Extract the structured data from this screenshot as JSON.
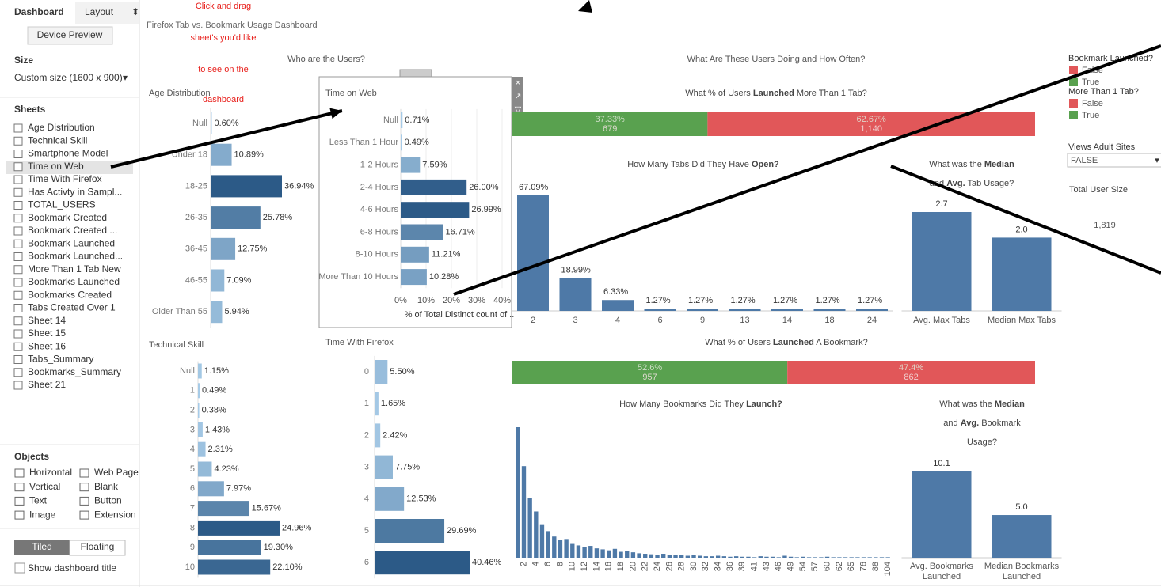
{
  "sidebar": {
    "tabs": [
      "Dashboard",
      "Layout"
    ],
    "device_preview": "Device Preview",
    "size_heading": "Size",
    "size_value": "Custom size (1600 x 900)",
    "sheets_heading": "Sheets",
    "sheets": [
      "Age Distribution",
      "Technical Skill",
      "Smartphone Model",
      "Time on Web",
      "Time With Firefox",
      "Has Activty in Sampl...",
      "TOTAL_USERS",
      "Bookmark Created",
      "Bookmark Created ...",
      "Bookmark Launched",
      "Bookmark Launched...",
      "More Than 1 Tab New",
      "Bookmarks Launched",
      "Bookmarks Created",
      "Tabs Created Over 1",
      "Sheet 14",
      "Sheet 15",
      "Sheet 16",
      "Tabs_Summary",
      "Bookmarks_Summary",
      "Sheet 21"
    ],
    "objects_heading": "Objects",
    "objects": [
      "Horizontal",
      "Web Page",
      "Vertical",
      "Blank",
      "Text",
      "Button",
      "Image",
      "Extension"
    ],
    "layout_modes": [
      "Tiled",
      "Floating"
    ],
    "show_title": "Show dashboard title"
  },
  "annotation": [
    "Click and drag",
    "sheet's you'd like",
    "to see on the",
    "dashboard"
  ],
  "dashboard_title": "Firefox Tab vs. Bookmark Usage Dashboard",
  "section_titles": [
    "Who are the Users?",
    "What Are These Users Doing and How Often?"
  ],
  "headings": [
    {
      "lines": [
        [
          {
            "text": "What % of Users "
          },
          {
            "text": "Launched",
            "bold": true
          },
          {
            "text": " More Than 1 Tab?"
          }
        ]
      ]
    },
    {
      "lines": [
        [
          {
            "text": "How Many Tabs Did They Have "
          },
          {
            "text": "Open?",
            "bold": true
          }
        ]
      ]
    },
    {
      "lines": [
        [
          {
            "text": "What was the "
          },
          {
            "text": "Median",
            "bold": true
          }
        ],
        [
          {
            "text": "and "
          },
          {
            "text": "Avg.",
            "bold": true
          },
          {
            "text": " Tab Usage?"
          }
        ]
      ]
    },
    {
      "lines": [
        [
          {
            "text": "What % of Users "
          },
          {
            "text": "Launched",
            "bold": true
          },
          {
            "text": " A Bookmark?"
          }
        ]
      ]
    },
    {
      "lines": [
        [
          {
            "text": "How Many Bookmarks Did They "
          },
          {
            "text": "Launch?",
            "bold": true
          }
        ]
      ]
    },
    {
      "lines": [
        [
          {
            "text": "What was the "
          },
          {
            "text": "Median",
            "bold": true
          }
        ],
        [
          {
            "text": "and "
          },
          {
            "text": "Avg.",
            "bold": true
          },
          {
            "text": " Bookmark"
          }
        ],
        [
          {
            "text": "Usage?"
          }
        ]
      ]
    }
  ],
  "charts": [
    {
      "type": "hbar",
      "title": "Age Distribution",
      "categories": [
        "Null",
        "Under 18",
        "18-25",
        "26-35",
        "36-45",
        "46-55",
        "Older Than 55"
      ],
      "values": [
        0.6,
        10.89,
        36.94,
        25.78,
        12.75,
        7.09,
        5.94
      ],
      "value_labels": [
        "0.60%",
        "10.89%",
        "36.94%",
        "25.78%",
        "12.75%",
        "7.09%",
        "5.94%"
      ],
      "color_range": [
        "#a9cde9",
        "#2c5a87"
      ]
    },
    {
      "type": "hbar",
      "title": "Time on Web",
      "categories": [
        "Null",
        "Less Than 1 Hour",
        "1-2 Hours",
        "2-4 Hours",
        "4-6 Hours",
        "6-8 Hours",
        "8-10 Hours",
        "More Than 10 Hours"
      ],
      "values": [
        0.71,
        0.49,
        7.59,
        26.0,
        26.99,
        16.71,
        11.21,
        10.28
      ],
      "value_labels": [
        "0.71%",
        "0.49%",
        "7.59%",
        "26.00%",
        "26.99%",
        "16.71%",
        "11.21%",
        "10.28%"
      ],
      "xlim": [
        0,
        40
      ],
      "xticks": [
        {
          "value": 0,
          "label": "0%"
        },
        {
          "value": 10,
          "label": "10%"
        },
        {
          "value": 20,
          "label": "20%"
        },
        {
          "value": 30,
          "label": "30%"
        },
        {
          "value": 40,
          "label": "40%"
        }
      ],
      "xlabel": "% of Total Distinct count of ..",
      "color_range": [
        "#a9cde9",
        "#2c5a87"
      ]
    },
    {
      "type": "hbar",
      "title": "Technical Skill",
      "categories": [
        "Null",
        "1",
        "2",
        "3",
        "4",
        "5",
        "6",
        "7",
        "8",
        "9",
        "10"
      ],
      "values": [
        1.15,
        0.49,
        0.38,
        1.43,
        2.31,
        4.23,
        7.97,
        15.67,
        24.96,
        19.3,
        22.1
      ],
      "value_labels": [
        "1.15%",
        "0.49%",
        "0.38%",
        "1.43%",
        "2.31%",
        "4.23%",
        "7.97%",
        "15.67%",
        "24.96%",
        "19.30%",
        "22.10%"
      ],
      "color_range": [
        "#a9cde9",
        "#2c5a87"
      ]
    },
    {
      "type": "hbar",
      "title": "Time With Firefox",
      "categories": [
        "0",
        "1",
        "2",
        "3",
        "4",
        "5",
        "6"
      ],
      "values": [
        5.5,
        1.65,
        2.42,
        7.75,
        12.53,
        29.69,
        40.46
      ],
      "value_labels": [
        "5.50%",
        "1.65%",
        "2.42%",
        "7.75%",
        "12.53%",
        "29.69%",
        "40.46%"
      ],
      "color_range": [
        "#a9cde9",
        "#2c5a87"
      ]
    },
    {
      "type": "stacked",
      "segments": [
        {
          "color": "#59a14f",
          "percent": 37.33,
          "percent_label": "37.33%",
          "count": 679,
          "count_label": "679"
        },
        {
          "color": "#e15759",
          "percent": 62.67,
          "percent_label": "62.67%",
          "count": 1140,
          "count_label": "1,140"
        }
      ]
    },
    {
      "type": "stacked",
      "segments": [
        {
          "color": "#59a14f",
          "percent": 52.6,
          "percent_label": "52.6%",
          "count": 957,
          "count_label": "957"
        },
        {
          "color": "#e15759",
          "percent": 47.4,
          "percent_label": "47.4%",
          "count": 862,
          "count_label": "862"
        }
      ]
    },
    {
      "type": "vbar",
      "categories": [
        "2",
        "3",
        "4",
        "6",
        "9",
        "13",
        "14",
        "18",
        "24"
      ],
      "values": [
        67.09,
        18.99,
        6.33,
        1.27,
        1.27,
        1.27,
        1.27,
        1.27,
        1.27
      ],
      "value_labels": [
        "67.09%",
        "18.99%",
        "6.33%",
        "1.27%",
        "1.27%",
        "1.27%",
        "1.27%",
        "1.27%",
        "1.27%"
      ],
      "color": "#4e79a7"
    },
    {
      "type": "vbar",
      "categories": [
        "Avg. Max Tabs",
        "Median Max Tabs"
      ],
      "values": [
        2.7,
        2.0
      ],
      "value_labels": [
        "2.7",
        "2.0"
      ],
      "color": "#4e79a7"
    },
    {
      "type": "hist",
      "categories": [
        null,
        "2",
        null,
        "4",
        null,
        "6",
        null,
        "8",
        null,
        "10",
        null,
        "12",
        null,
        "14",
        null,
        "16",
        null,
        "18",
        null,
        "20",
        null,
        "22",
        null,
        "24",
        null,
        "26",
        null,
        "28",
        null,
        "30",
        null,
        "32",
        null,
        "34",
        null,
        "36",
        null,
        "39",
        null,
        "41",
        null,
        "43",
        null,
        "46",
        null,
        "49",
        null,
        "54",
        null,
        "57",
        null,
        "60",
        null,
        "62",
        null,
        "65",
        null,
        "76",
        null,
        "88",
        null,
        "104"
      ],
      "values": [
        26.5,
        18.6,
        12.1,
        9.4,
        6.8,
        5.4,
        4.3,
        3.6,
        3.8,
        2.8,
        2.5,
        2.2,
        2.4,
        1.9,
        1.7,
        1.5,
        1.8,
        1.2,
        1.3,
        1.1,
        0.9,
        0.8,
        0.7,
        0.6,
        0.8,
        0.6,
        0.5,
        0.6,
        0.4,
        0.5,
        0.4,
        0.3,
        0.3,
        0.4,
        0.3,
        0.2,
        0.3,
        0.2,
        0.2,
        0.1,
        0.3,
        0.2,
        0.2,
        0.1,
        0.4,
        0.2,
        0.1,
        0.2,
        0.1,
        0.1,
        0.1,
        0.2,
        0.1,
        0.1,
        0.1,
        0.1,
        0.1,
        0.1,
        0.1,
        0.1,
        0.1,
        0.1
      ],
      "color": "#4e79a7"
    },
    {
      "type": "vbar",
      "categories": [
        [
          "Avg. Bookmarks",
          "Launched"
        ],
        [
          "Median Bookmarks",
          "Launched"
        ]
      ],
      "values": [
        10.1,
        5.0
      ],
      "value_labels": [
        "10.1",
        "5.0"
      ],
      "color": "#4e79a7"
    }
  ],
  "legends": [
    {
      "title": "Bookmark Launched?",
      "items": [
        {
          "name": "False",
          "color": "#e15759"
        },
        {
          "name": "True",
          "color": "#59a14f"
        }
      ]
    },
    {
      "title": "More Than 1 Tab?",
      "items": [
        {
          "name": "False",
          "color": "#e15759"
        },
        {
          "name": "True",
          "color": "#59a14f"
        }
      ]
    }
  ],
  "filter": {
    "title": "Views Adult Sites",
    "value": "FALSE"
  },
  "total": {
    "title": "Total User Size",
    "value": 1819,
    "value_label": "1,819"
  }
}
